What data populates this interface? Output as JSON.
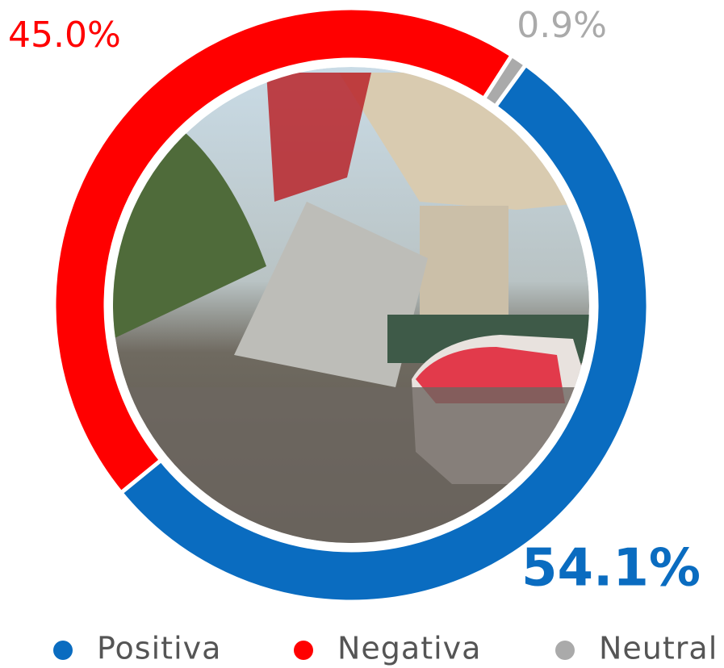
{
  "chart_data": {
    "type": "donut",
    "categories": [
      "Positiva",
      "Negativa",
      "Neutral"
    ],
    "values": [
      54.1,
      45.0,
      0.9
    ],
    "value_labels": [
      "54.1%",
      "45.0%",
      "0.9%"
    ],
    "colors": [
      "#0a6cc0",
      "#ff0000",
      "#aaaaaa"
    ],
    "legend": "bottom"
  }
}
